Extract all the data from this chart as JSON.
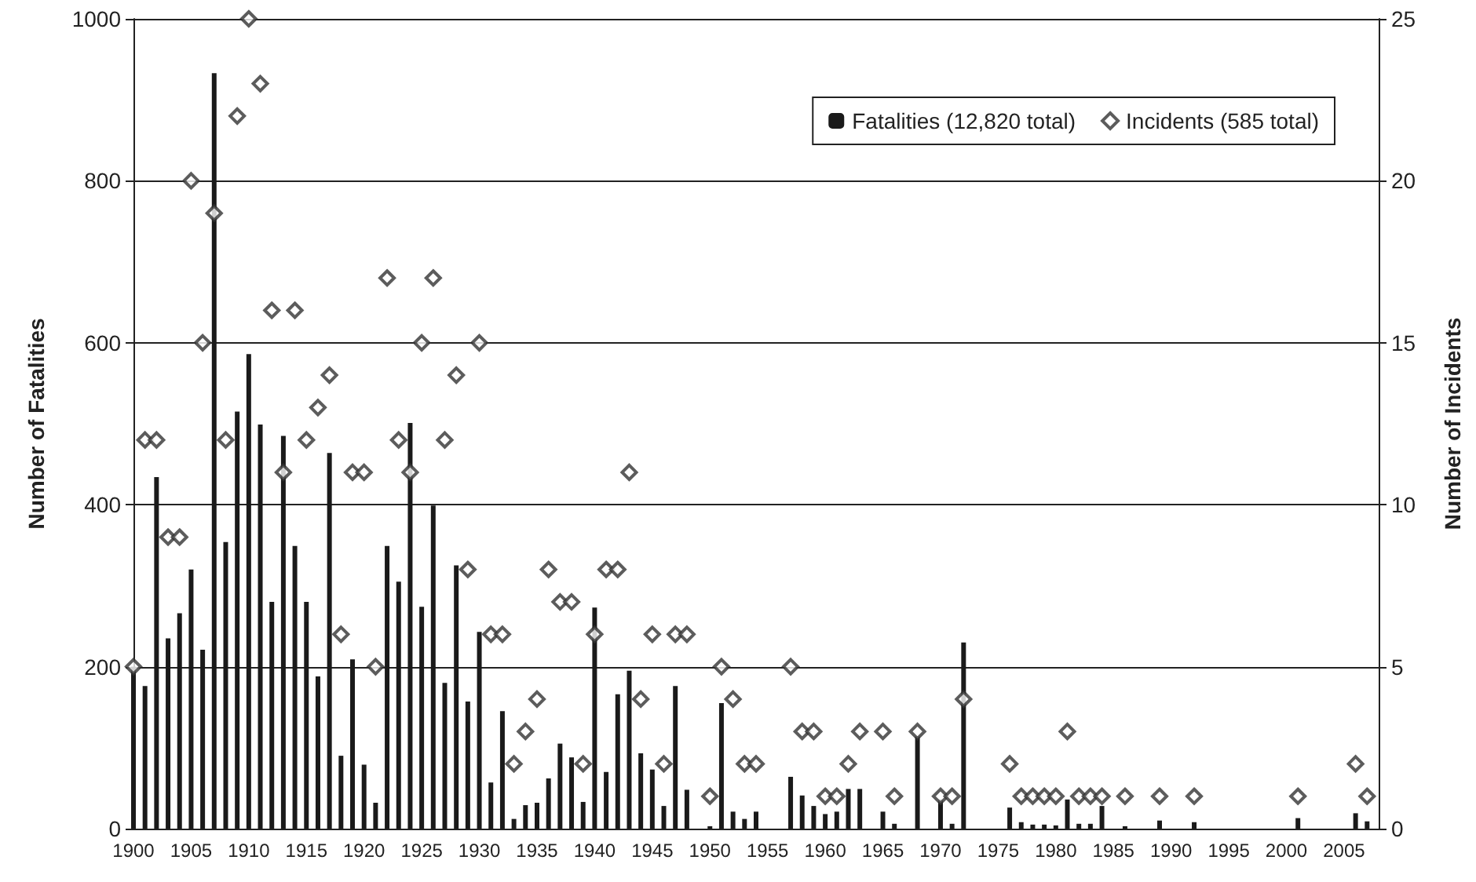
{
  "chart_data": {
    "type": "bar",
    "categories": [
      "1900",
      null,
      null,
      null,
      null,
      "1905",
      null,
      null,
      null,
      null,
      "1910",
      null,
      null,
      null,
      null,
      "1915",
      null,
      null,
      null,
      null,
      "1920",
      null,
      null,
      null,
      null,
      "1925",
      null,
      null,
      null,
      null,
      "1930",
      null,
      null,
      null,
      null,
      "1935",
      null,
      null,
      null,
      null,
      "1940",
      null,
      null,
      null,
      null,
      "1945",
      null,
      null,
      null,
      null,
      "1950",
      null,
      null,
      null,
      null,
      "1955",
      null,
      null,
      null,
      null,
      "1960",
      null,
      null,
      null,
      null,
      "1965",
      null,
      null,
      null,
      null,
      "1970",
      null,
      null,
      null,
      null,
      "1975",
      null,
      null,
      null,
      null,
      "1980",
      null,
      null,
      null,
      null,
      "1985",
      null,
      null,
      null,
      null,
      "1990",
      null,
      null,
      null,
      null,
      "1995",
      null,
      null,
      null,
      null,
      "2000",
      null,
      null,
      null,
      null,
      "2005",
      null,
      null,
      null
    ],
    "series": [
      {
        "name": "Fatalities (12,820 total)",
        "color": "#1a1a1a",
        "values": [
          200,
          176,
          434,
          235,
          266,
          320,
          221,
          933,
          354,
          515,
          586,
          499,
          280,
          485,
          349,
          280,
          188,
          464,
          90,
          209,
          79,
          32,
          349,
          305,
          501,
          274,
          399,
          180,
          325,
          157,
          243,
          57,
          145,
          12,
          29,
          32,
          62,
          105,
          88,
          33,
          273,
          70,
          166,
          195,
          93,
          73,
          28,
          176,
          48,
          null,
          3,
          155,
          21,
          12,
          21,
          null,
          null,
          64,
          41,
          28,
          18,
          21,
          49,
          49,
          null,
          21,
          6,
          null,
          114,
          null,
          36,
          6,
          230,
          null,
          null,
          null,
          26,
          8,
          5,
          5,
          4,
          36,
          6,
          6,
          28,
          null,
          3,
          null,
          null,
          10,
          null,
          null,
          8,
          null,
          null,
          null,
          null,
          null,
          null,
          null,
          null,
          13,
          null,
          null,
          null,
          null,
          19,
          9,
          null
        ]
      },
      {
        "name": "Incidents (585 total)",
        "type": "scatter",
        "axis": "y2",
        "color": "#333333",
        "values": [
          5,
          12,
          12,
          9,
          9,
          20,
          15,
          19,
          12,
          22,
          25,
          23,
          16,
          11,
          16,
          12,
          13,
          14,
          6,
          11,
          11,
          5,
          17,
          12,
          11,
          15,
          17,
          12,
          14,
          8,
          15,
          6,
          6,
          2,
          3,
          4,
          8,
          7,
          7,
          2,
          6,
          8,
          8,
          11,
          4,
          6,
          2,
          6,
          6,
          null,
          1,
          5,
          4,
          2,
          2,
          null,
          null,
          5,
          3,
          3,
          1,
          1,
          2,
          3,
          null,
          3,
          1,
          null,
          3,
          null,
          1,
          1,
          4,
          null,
          null,
          null,
          2,
          1,
          1,
          1,
          1,
          3,
          1,
          1,
          1,
          null,
          1,
          null,
          null,
          1,
          null,
          null,
          1,
          null,
          null,
          null,
          null,
          null,
          null,
          null,
          null,
          1,
          null,
          null,
          null,
          null,
          2,
          1,
          null
        ]
      }
    ],
    "ylabel": "Number of Fatalities",
    "y2label": "Number of Incidents",
    "ylim": [
      0,
      1000
    ],
    "yticks": [
      0,
      200,
      400,
      600,
      800,
      1000
    ],
    "y2lim": [
      0,
      25
    ],
    "y2ticks": [
      0,
      5,
      10,
      15,
      20,
      25
    ],
    "grid": "y",
    "legend": "top right",
    "marker": "diamond"
  }
}
